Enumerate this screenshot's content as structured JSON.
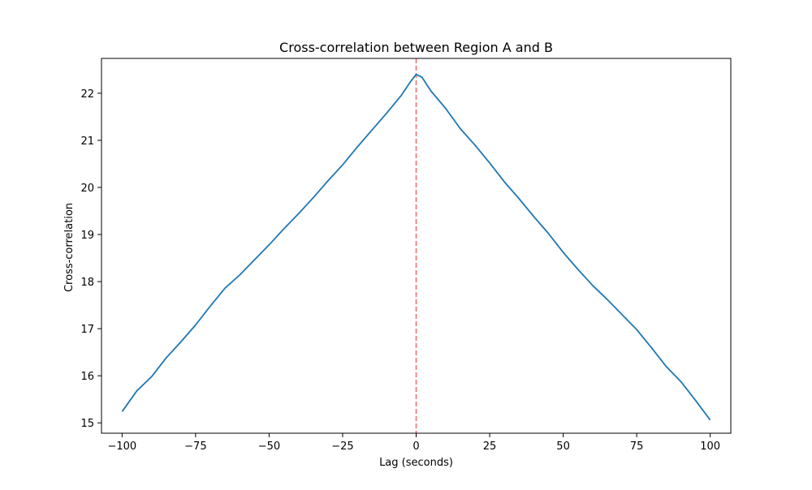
{
  "chart_data": {
    "type": "line",
    "title": "Cross-correlation between Region A and B",
    "xlabel": "Lag (seconds)",
    "ylabel": "Cross-correlation",
    "xlim": [
      -107,
      107
    ],
    "ylim": [
      14.78,
      22.74
    ],
    "xticks": [
      -100,
      -75,
      -50,
      -25,
      0,
      25,
      50,
      75,
      100
    ],
    "xtick_labels": [
      "−100",
      "−75",
      "−50",
      "−25",
      "0",
      "25",
      "50",
      "75",
      "100"
    ],
    "yticks": [
      15,
      16,
      17,
      18,
      19,
      20,
      21,
      22
    ],
    "ytick_labels": [
      "15",
      "16",
      "17",
      "18",
      "19",
      "20",
      "21",
      "22"
    ],
    "grid": false,
    "reference_line": {
      "x": 0,
      "color": "#f07070",
      "style": "dashed"
    },
    "series": [
      {
        "color": "#1f77b4",
        "x": [
          -100,
          -95,
          -90,
          -85,
          -80,
          -75,
          -70,
          -65,
          -60,
          -55,
          -50,
          -45,
          -40,
          -35,
          -30,
          -25,
          -20,
          -15,
          -10,
          -5,
          -2,
          0,
          2,
          5,
          10,
          15,
          20,
          25,
          30,
          35,
          40,
          45,
          50,
          55,
          60,
          65,
          70,
          75,
          80,
          85,
          90,
          95,
          100
        ],
        "y": [
          15.24,
          15.68,
          15.98,
          16.38,
          16.72,
          17.08,
          17.48,
          17.86,
          18.14,
          18.46,
          18.78,
          19.12,
          19.44,
          19.78,
          20.14,
          20.48,
          20.86,
          21.22,
          21.58,
          21.96,
          22.24,
          22.4,
          22.34,
          22.05,
          21.68,
          21.25,
          20.9,
          20.52,
          20.12,
          19.76,
          19.38,
          19.02,
          18.62,
          18.26,
          17.92,
          17.62,
          17.3,
          16.98,
          16.6,
          16.2,
          15.88,
          15.48,
          15.06
        ]
      }
    ]
  }
}
